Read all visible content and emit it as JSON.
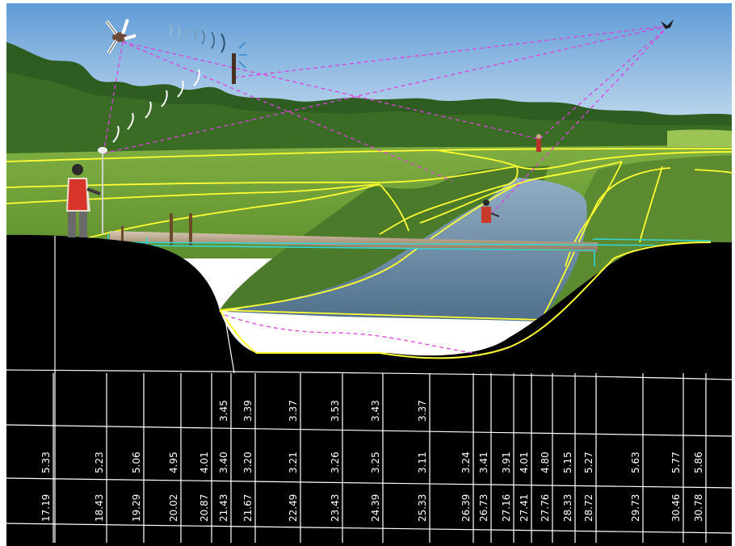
{
  "scene": {
    "description_free": true,
    "colors": {
      "sky_top": "#6fa8dc",
      "sky_bottom": "#cfe3f2",
      "trees": "#2d5a1e",
      "meadow": "#6a9a34",
      "meadow_light": "#8fba4c",
      "water": "#6f8fa8",
      "ground": "#000000",
      "survey_lines": "#ffff33",
      "radio_links": "#e040e0",
      "pipe": "#b8a68e",
      "pipe_outline": "#33d6d6",
      "grid": "#ffffff"
    },
    "icons": {
      "drone": "drone-icon",
      "bird": "bird-icon",
      "antenna": "antenna-icon",
      "surveyors": "surveyor-icon"
    }
  },
  "cross_section": {
    "columns": [
      {
        "elev": null,
        "depth": "5.33",
        "dist": "17.19"
      },
      {
        "elev": null,
        "depth": "5.23",
        "dist": "18.43"
      },
      {
        "elev": null,
        "depth": "5.06",
        "dist": "19.29"
      },
      {
        "elev": null,
        "depth": "4.95",
        "dist": "20.02"
      },
      {
        "elev": null,
        "depth": "4.01",
        "dist": "20.87"
      },
      {
        "elev": "3.45",
        "depth": "3.40",
        "dist": "21.43"
      },
      {
        "elev": "3.39",
        "depth": "3.20",
        "dist": "21.67"
      },
      {
        "elev": "3.37",
        "depth": "3.21",
        "dist": "22.49"
      },
      {
        "elev": "3.53",
        "depth": "3.26",
        "dist": "23.43"
      },
      {
        "elev": "3.43",
        "depth": "3.25",
        "dist": "24.39"
      },
      {
        "elev": "3.37",
        "depth": "3.11",
        "dist": "25.33"
      },
      {
        "elev": null,
        "depth": "3.24",
        "dist": "26.39"
      },
      {
        "elev": null,
        "depth": "3.41",
        "dist": "26.73"
      },
      {
        "elev": null,
        "depth": "3.91",
        "dist": "27.16"
      },
      {
        "elev": null,
        "depth": "4.01",
        "dist": "27.41"
      },
      {
        "elev": null,
        "depth": "4.80",
        "dist": "27.76"
      },
      {
        "elev": null,
        "depth": "5.15",
        "dist": "28.33"
      },
      {
        "elev": null,
        "depth": "5.27",
        "dist": "28.72"
      },
      {
        "elev": null,
        "depth": "5.63",
        "dist": "29.73"
      },
      {
        "elev": null,
        "depth": "5.77",
        "dist": "30.46"
      },
      {
        "elev": null,
        "depth": "5.86",
        "dist": "30.78"
      }
    ]
  }
}
